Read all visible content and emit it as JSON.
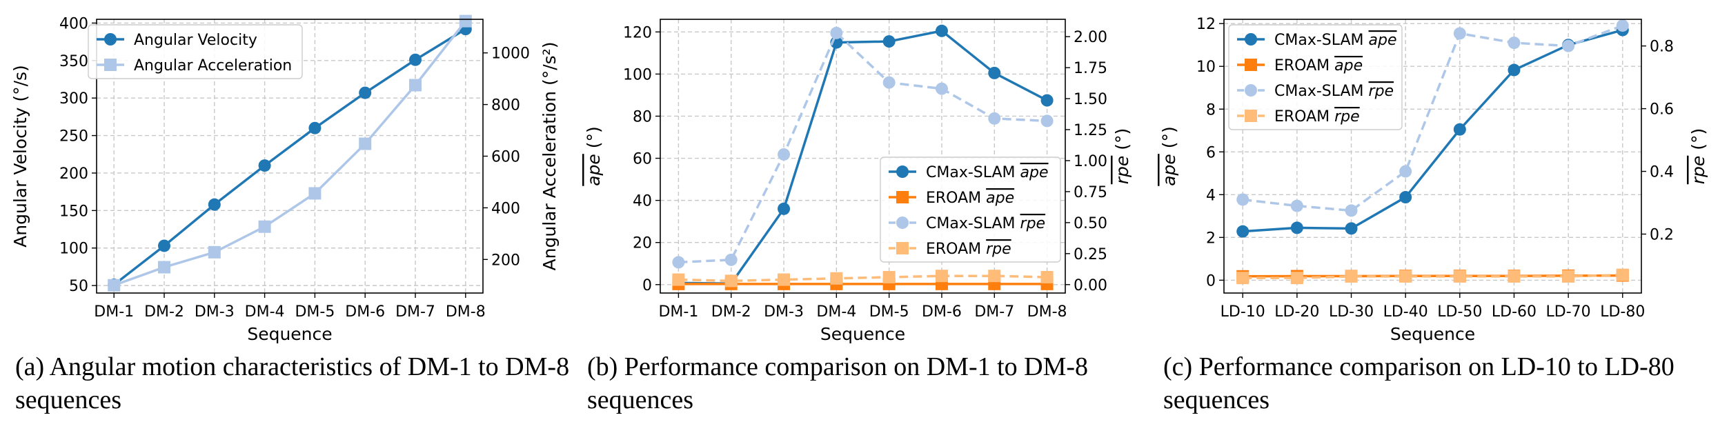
{
  "colors": {
    "dark_blue": "#1f77b4",
    "light_blue": "#aec7e8",
    "dark_orange": "#ff7f0e",
    "light_orange": "#ffbb78",
    "grid": "#c8c8c8",
    "axis": "#000000"
  },
  "chart_data": [
    {
      "type": "line",
      "caption": "(a) Angular motion characteristics of DM-1 to DM-8 sequences",
      "categories": [
        "DM-1",
        "DM-2",
        "DM-3",
        "DM-4",
        "DM-5",
        "DM-6",
        "DM-7",
        "DM-8"
      ],
      "xlabel": "Sequence",
      "ylabel_left": "Angular Velocity (°/s)",
      "ylabel_right": "Angular Acceleration (°/s²)",
      "ylim_left": [
        40,
        405
      ],
      "ylim_right": [
        70,
        1130
      ],
      "yticks_left": [
        50,
        100,
        150,
        200,
        250,
        300,
        350,
        400
      ],
      "yticks_right": [
        200,
        400,
        600,
        800,
        1000
      ],
      "grid": true,
      "legend_position": "top-left",
      "series": [
        {
          "name": "Angular Velocity",
          "axis": "left",
          "marker": "circle",
          "color": "#1f77b4",
          "dashed": false,
          "values": [
            51,
            103,
            158,
            210,
            260,
            307,
            351,
            392
          ]
        },
        {
          "name": "Angular Acceleration",
          "axis": "right",
          "marker": "square",
          "color": "#aec7e8",
          "dashed": false,
          "values": [
            100,
            170,
            228,
            327,
            456,
            648,
            875,
            1123
          ]
        }
      ]
    },
    {
      "type": "line",
      "caption": "(b) Performance comparison on DM-1 to DM-8 sequences",
      "categories": [
        "DM-1",
        "DM-2",
        "DM-3",
        "DM-4",
        "DM-5",
        "DM-6",
        "DM-7",
        "DM-8"
      ],
      "xlabel": "Sequence",
      "ylabel_left": "ape (°)",
      "ylabel_right": "rpe (°)",
      "ylim_left": [
        -4,
        126
      ],
      "ylim_right": [
        -0.068,
        2.14
      ],
      "yticks_left": [
        0,
        20,
        40,
        60,
        80,
        100,
        120
      ],
      "yticks_right": [
        0.0,
        0.25,
        0.5,
        0.75,
        1.0,
        1.25,
        1.5,
        1.75,
        2.0
      ],
      "grid": true,
      "legend_position": "center-right",
      "series": [
        {
          "name": "CMax-SLAM",
          "metric": "ape",
          "axis": "left",
          "marker": "circle",
          "color": "#1f77b4",
          "dashed": false,
          "values": [
            0.8,
            0.5,
            36,
            115,
            115.5,
            120.5,
            100.5,
            87.5
          ]
        },
        {
          "name": "EROAM",
          "metric": "ape",
          "axis": "left",
          "marker": "square",
          "color": "#ff7f0e",
          "dashed": false,
          "values": [
            0.3,
            0.3,
            0.3,
            0.3,
            0.3,
            0.3,
            0.3,
            0.3
          ]
        },
        {
          "name": "CMax-SLAM",
          "metric": "rpe",
          "axis": "right",
          "marker": "circle",
          "color": "#aec7e8",
          "dashed": true,
          "values": [
            0.18,
            0.2,
            1.05,
            2.03,
            1.63,
            1.58,
            1.34,
            1.32
          ]
        },
        {
          "name": "EROAM",
          "metric": "rpe",
          "axis": "right",
          "marker": "square",
          "color": "#ffbb78",
          "dashed": true,
          "values": [
            0.04,
            0.03,
            0.04,
            0.05,
            0.06,
            0.07,
            0.07,
            0.06
          ]
        }
      ]
    },
    {
      "type": "line",
      "caption": "(c) Performance comparison on LD-10 to LD-80 sequences",
      "categories": [
        "LD-10",
        "LD-20",
        "LD-30",
        "LD-40",
        "LD-50",
        "LD-60",
        "LD-70",
        "LD-80"
      ],
      "xlabel": "Sequence",
      "ylabel_left": "ape (°)",
      "ylabel_right": "rpe (°)",
      "ylim_left": [
        -0.6,
        12.2
      ],
      "ylim_right": [
        0.012,
        0.885
      ],
      "yticks_left": [
        0,
        2,
        4,
        6,
        8,
        10,
        12
      ],
      "yticks_right": [
        0.2,
        0.4,
        0.6,
        0.8
      ],
      "grid": true,
      "legend_position": "top-left",
      "series": [
        {
          "name": "CMax-SLAM",
          "metric": "ape",
          "axis": "left",
          "marker": "circle",
          "color": "#1f77b4",
          "dashed": false,
          "values": [
            2.28,
            2.45,
            2.42,
            3.88,
            7.05,
            9.83,
            11.0,
            11.7
          ]
        },
        {
          "name": "EROAM",
          "metric": "ape",
          "axis": "left",
          "marker": "square",
          "color": "#ff7f0e",
          "dashed": false,
          "values": [
            0.18,
            0.19,
            0.19,
            0.2,
            0.2,
            0.2,
            0.21,
            0.22
          ]
        },
        {
          "name": "CMax-SLAM",
          "metric": "rpe",
          "axis": "right",
          "marker": "circle",
          "color": "#aec7e8",
          "dashed": true,
          "values": [
            0.31,
            0.29,
            0.275,
            0.4,
            0.84,
            0.81,
            0.8,
            0.865
          ]
        },
        {
          "name": "EROAM",
          "metric": "rpe",
          "axis": "right",
          "marker": "square",
          "color": "#ffbb78",
          "dashed": true,
          "values": [
            0.06,
            0.06,
            0.065,
            0.065,
            0.065,
            0.065,
            0.065,
            0.07
          ]
        }
      ]
    }
  ]
}
